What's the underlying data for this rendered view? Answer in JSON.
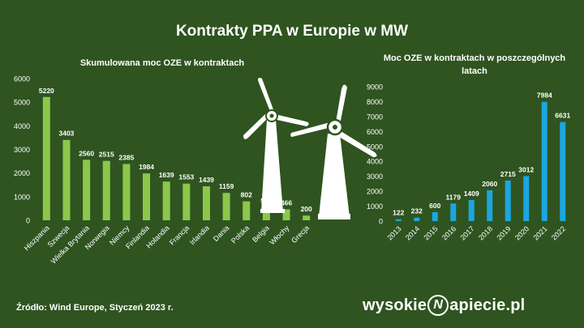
{
  "title": "Kontrakty PPA w Europie w MW",
  "source": "Źródło:  Wind Europe, Styczeń 2023 r.",
  "brand": {
    "before": "wysokie",
    "letter": "N",
    "after": "apiecie.pl"
  },
  "colors": {
    "background": "#2f5420",
    "left_bars": "#8bc84a",
    "right_bars": "#1ba6e0",
    "turbine": "#ffffff"
  },
  "chart_data": [
    {
      "type": "bar",
      "title": "Skumulowana moc OZE w kontraktach",
      "categories": [
        "Hiszpania",
        "Szwecja",
        "Wielka Brytania",
        "Norwegia",
        "Niemcy",
        "Finlandia",
        "Holandia",
        "Francja",
        "Irlandia",
        "Dania",
        "Polska",
        "Belgia",
        "Włochy",
        "Grecja"
      ],
      "values": [
        5220,
        3403,
        2560,
        2515,
        2385,
        1984,
        1639,
        1553,
        1439,
        1159,
        802,
        556,
        466,
        200
      ],
      "ylim": [
        0,
        6000
      ],
      "yticks": [
        0,
        1000,
        2000,
        3000,
        4000,
        5000,
        6000
      ],
      "grid": false
    },
    {
      "type": "bar",
      "title": "Moc OZE w kontraktach w poszczególnych latach",
      "categories": [
        "2013",
        "2014",
        "2015",
        "2016",
        "2017",
        "2018",
        "2019",
        "2020",
        "2021",
        "2022"
      ],
      "values": [
        122,
        232,
        600,
        1179,
        1409,
        2060,
        2715,
        3012,
        7984,
        6631
      ],
      "ylim": [
        0,
        9000
      ],
      "yticks": [
        0,
        1000,
        2000,
        3000,
        4000,
        5000,
        6000,
        7000,
        8000,
        9000
      ],
      "grid": false
    }
  ]
}
